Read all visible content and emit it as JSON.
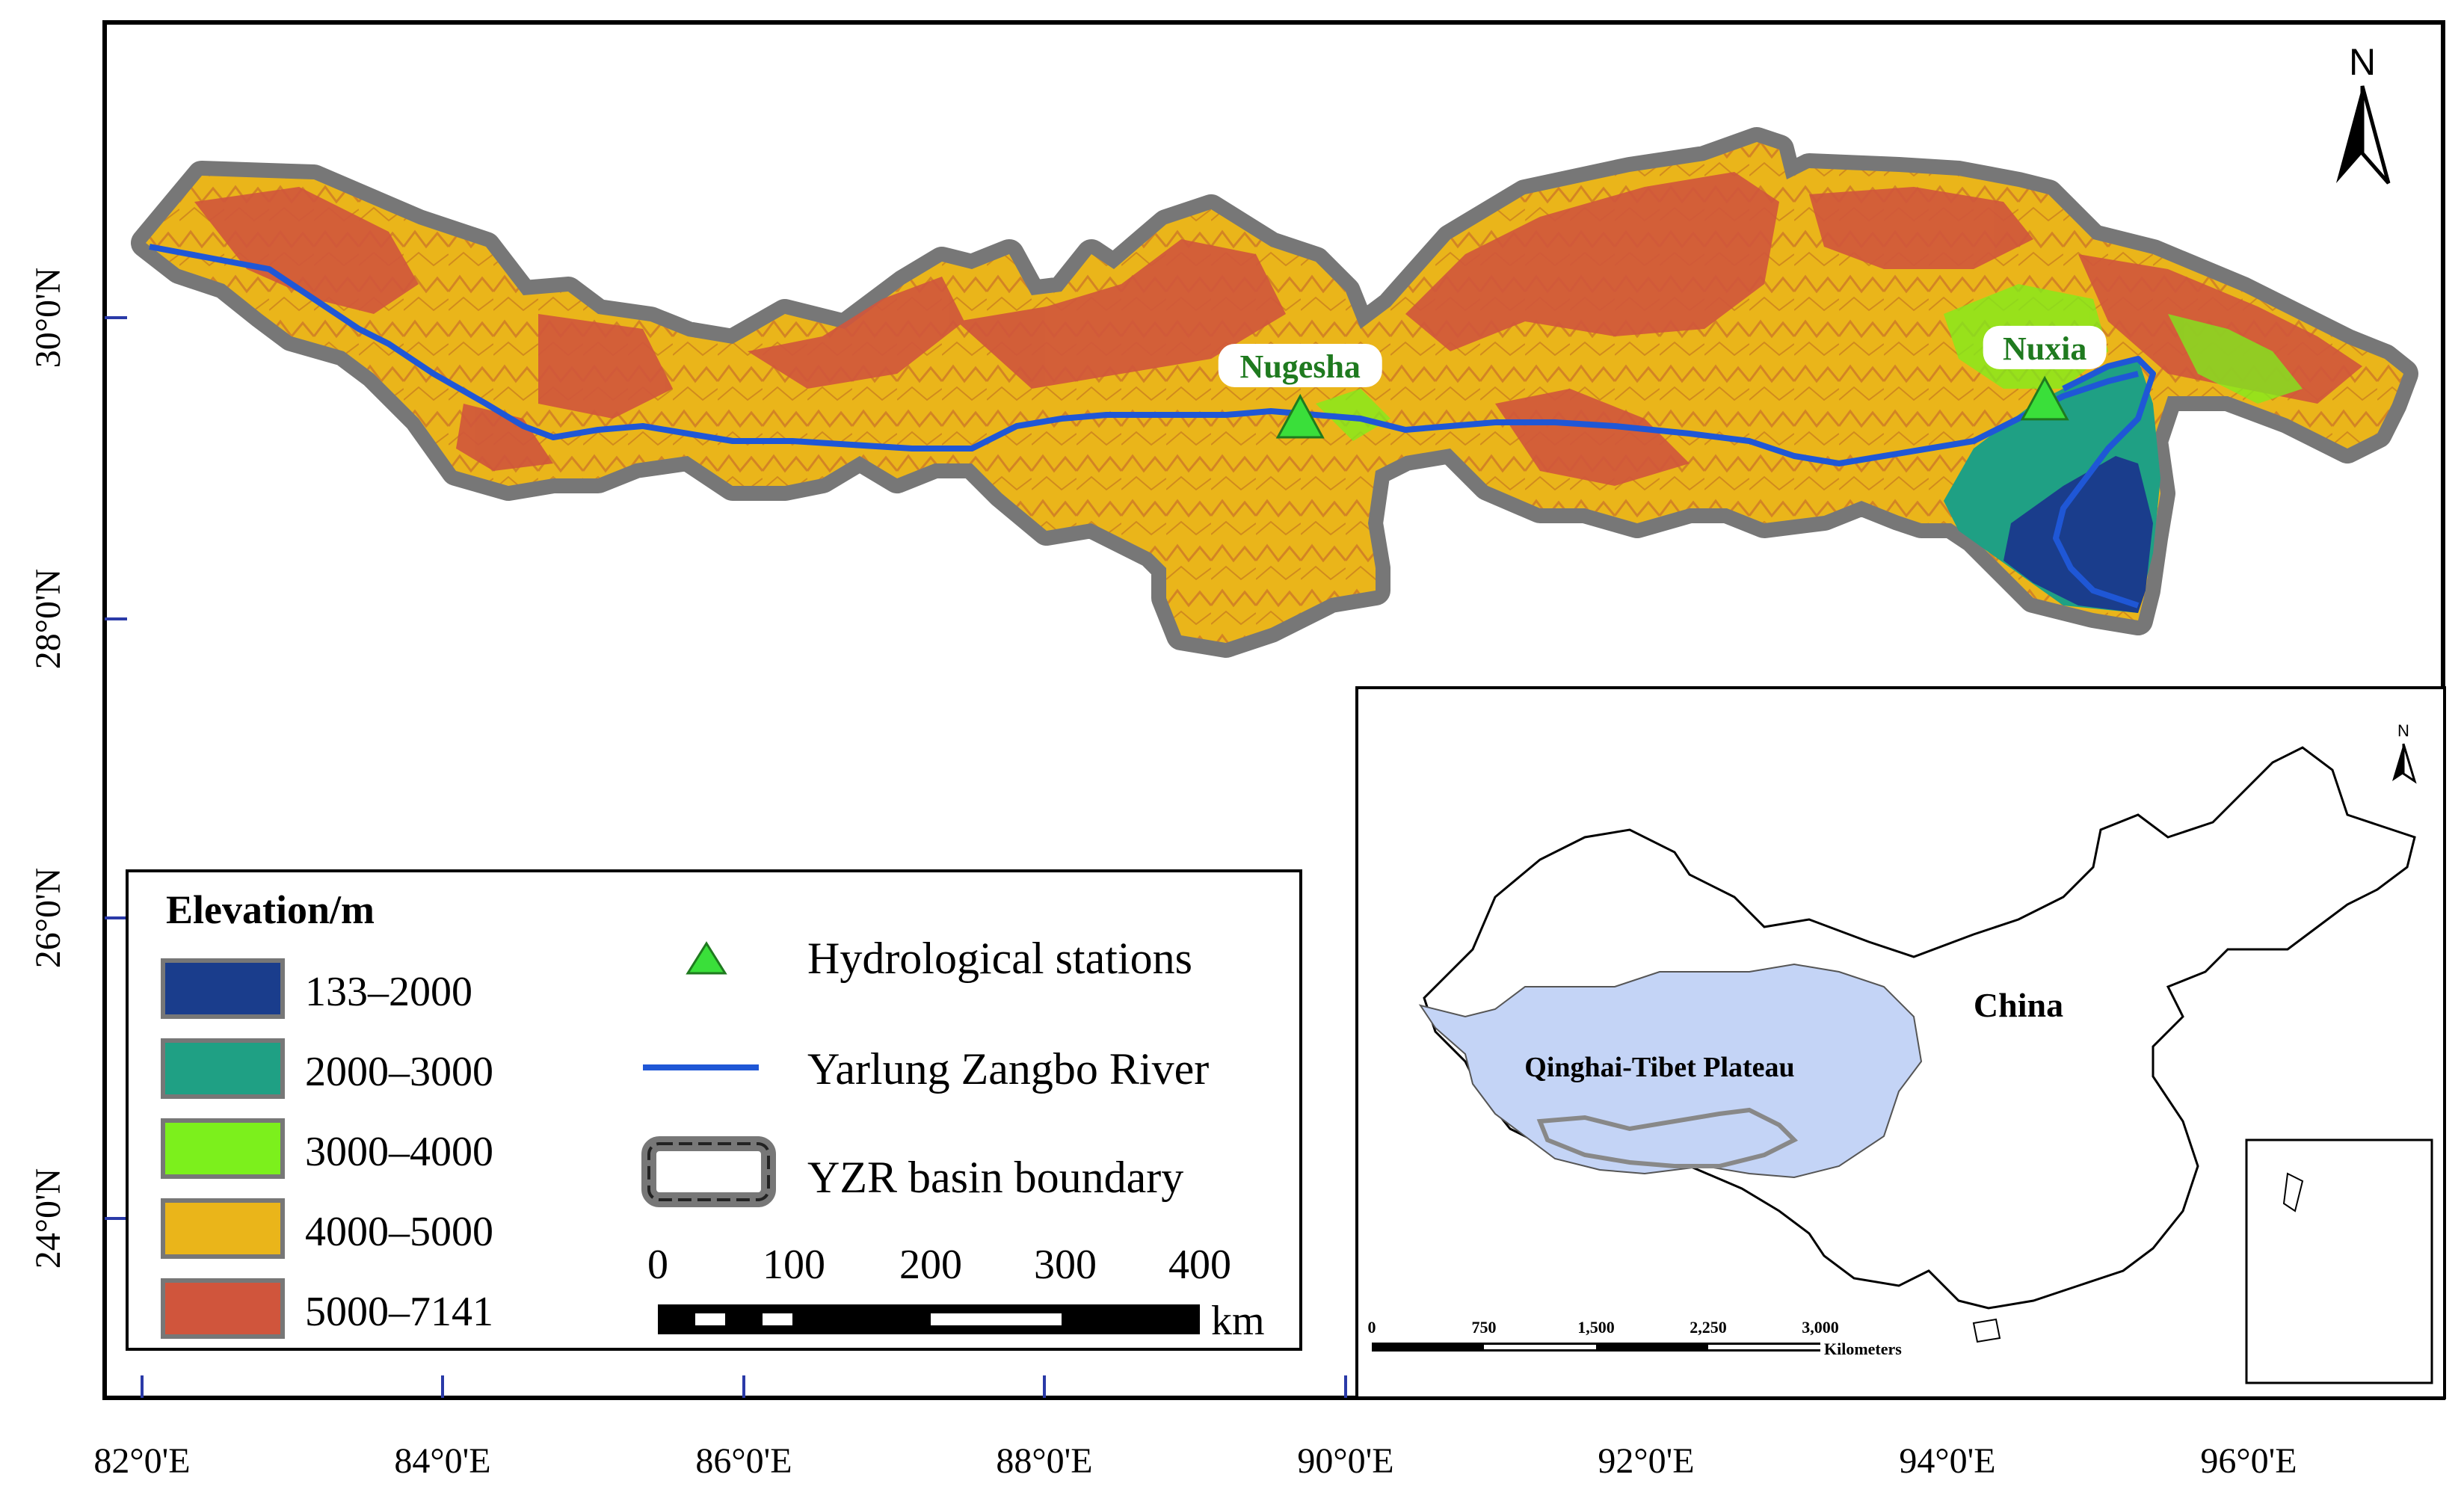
{
  "map": {
    "north_label": "N",
    "lat_labels": [
      "30°0'N",
      "28°0'N",
      "26°0'N",
      "24°0'N"
    ],
    "lon_labels": [
      "82°0'E",
      "84°0'E",
      "86°0'E",
      "88°0'E",
      "90°0'E",
      "92°0'E",
      "94°0'E",
      "96°0'E"
    ],
    "stations": [
      {
        "name": "Nugesha",
        "lon": 89.7,
        "lat": 29.33
      },
      {
        "name": "Nuxia",
        "lon": 94.65,
        "lat": 29.45
      }
    ],
    "colors": {
      "c133_2000": "#1a3d8c",
      "c2000_3000": "#1fa084",
      "c3000_4000": "#7cf01c",
      "c4000_5000": "#eab51a",
      "c5000_7141": "#d0553c",
      "river": "#1f57d6",
      "station": "#3adf3a",
      "station_label": "#1f7a1f",
      "plateau": "#c4d4f6",
      "boundary_halo": "#777777"
    }
  },
  "legend": {
    "title": "Elevation/m",
    "classes": [
      {
        "label": "133–2000",
        "color": "#1a3d8c"
      },
      {
        "label": "2000–3000",
        "color": "#1fa084"
      },
      {
        "label": "3000–4000",
        "color": "#7cf01c"
      },
      {
        "label": "4000–5000",
        "color": "#eab51a"
      },
      {
        "label": "5000–7141",
        "color": "#d0553c"
      }
    ],
    "symbols": {
      "stations": "Hydrological stations",
      "river": "Yarlung Zangbo River",
      "boundary": "YZR basin boundary"
    },
    "scale": {
      "ticks": [
        "0",
        "100",
        "200",
        "300",
        "400"
      ],
      "unit": "km"
    }
  },
  "inset": {
    "country_label": "China",
    "plateau_label": "Qinghai-Tibet Plateau",
    "north_label": "N",
    "scale_ticks": [
      "0",
      "750",
      "1,500",
      "2,250",
      "3,000"
    ],
    "scale_unit": "Kilometers"
  }
}
